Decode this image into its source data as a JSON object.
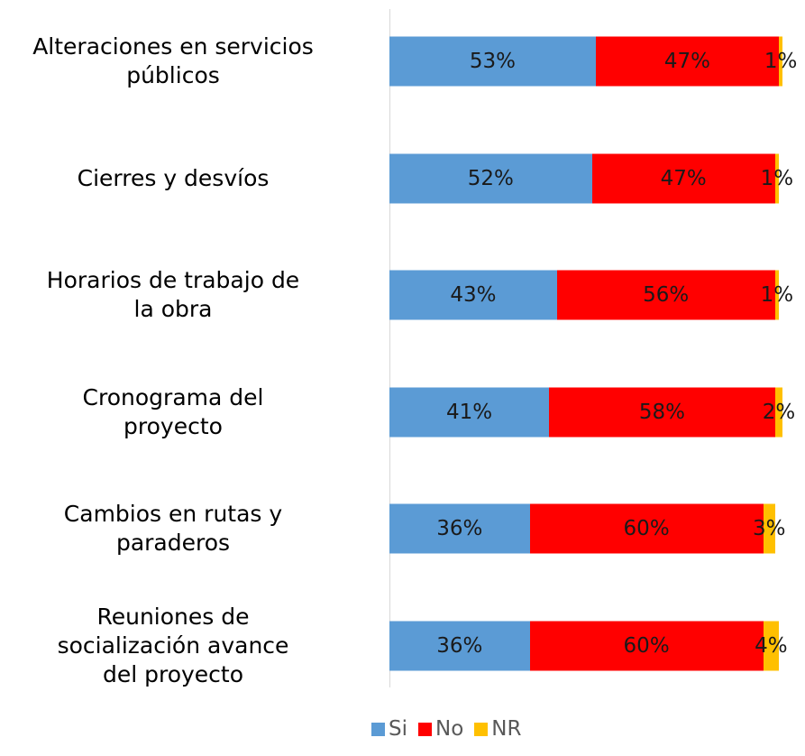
{
  "chart_data": {
    "type": "stacked_bar_horizontal",
    "categories": [
      "Alteraciones en servicios\npúblicos",
      "Cierres y desvíos",
      "Horarios de trabajo de\nla obra",
      "Cronograma del\nproyecto",
      "Cambios en rutas y\nparaderos",
      "Reuniones de\nsocialización avance\ndel proyecto"
    ],
    "series": [
      {
        "name": "Si",
        "color": "#5b9bd5",
        "values": [
          53,
          52,
          43,
          41,
          36,
          36
        ],
        "value_labels": [
          "53%",
          "52%",
          "43%",
          "41%",
          "36%",
          "36%"
        ]
      },
      {
        "name": "No",
        "color": "#ff0000",
        "values": [
          47,
          47,
          56,
          58,
          60,
          60
        ],
        "value_labels": [
          "47%",
          "47%",
          "56%",
          "58%",
          "60%",
          "60%"
        ]
      },
      {
        "name": "NR",
        "color": "#ffc000",
        "values": [
          1,
          1,
          1,
          2,
          3,
          4
        ],
        "value_labels": [
          "1%",
          "1%",
          "1%",
          "2%",
          "3%",
          "4%"
        ]
      }
    ],
    "legend": "bottom"
  }
}
